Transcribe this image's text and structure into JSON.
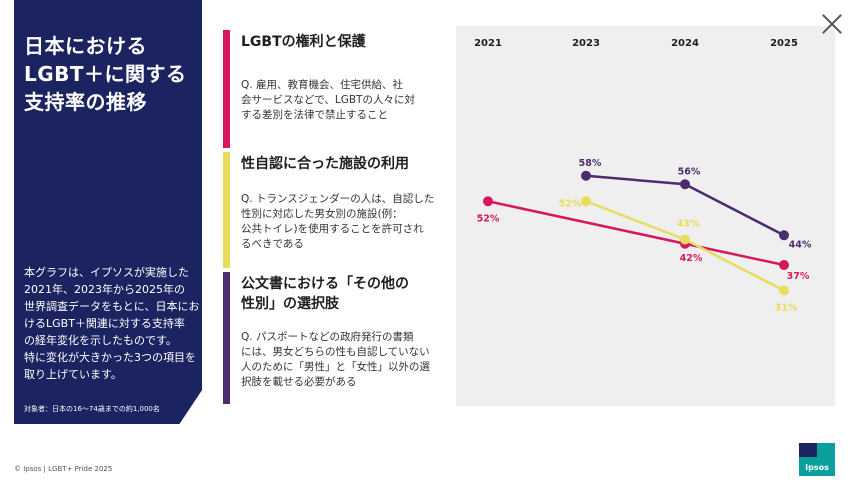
{
  "left_panel": {
    "title": "日本における\nLGBT＋に関する\n支持率の推移",
    "description": "本グラフは、イプソスが実施した\n2021年、2023年から2025年の\n世界調査データをもとに、日本にお\nけるLGBT＋関連に対する支持率\nの経年変化を示したものです。\n特に変化が大きかった3つの項目を\n取り上げています。",
    "note": "対象者：日本の16〜74歳までの約1,000名"
  },
  "items": [
    {
      "title": "LGBTの権利と保護",
      "description": "Q. 雇用、教育機会、住宅供給、社\n会サービスなどで、LGBTの人々に対\nする差別を法律で禁止すること",
      "color": "#d6175e"
    },
    {
      "title": "性自認に合った施設の利用",
      "description": "Q. トランスジェンダーの人は、自認した\n性別に対応した男女別の施設(例：\n公共トイレ)を使用することを許可され\nるべきである",
      "color": "#e8dd5c"
    },
    {
      "title": "公文書における「その他の\n性別」の選択肢",
      "description": "Q. パスポートなどの政府発行の書類\nには、男女どちらの性も自認していない\n人のために「男性」と「女性」以外の選\n択肢を載せる必要がある",
      "color": "#4b2c6e"
    }
  ],
  "chart_data": {
    "type": "line",
    "x": [
      "2021",
      "2023",
      "2024",
      "2025"
    ],
    "ylim": [
      25,
      65
    ],
    "grid": false,
    "series": [
      {
        "key": "rights",
        "color": "#d6175e",
        "values": [
          52,
          null,
          42,
          37
        ],
        "labels": [
          "52%",
          null,
          "42%",
          "37%"
        ]
      },
      {
        "key": "facilities",
        "color": "#e8dd5c",
        "values": [
          null,
          52,
          43,
          31
        ],
        "labels": [
          null,
          "52%",
          "43%",
          "31%"
        ]
      },
      {
        "key": "documents",
        "color": "#4b2c6e",
        "values": [
          null,
          58,
          56,
          44
        ],
        "labels": [
          null,
          "58%",
          "56%",
          "44%"
        ]
      }
    ]
  },
  "footer": "© Ipsos | LGBT+ Pride 2025",
  "logo_text": "Ipsos"
}
